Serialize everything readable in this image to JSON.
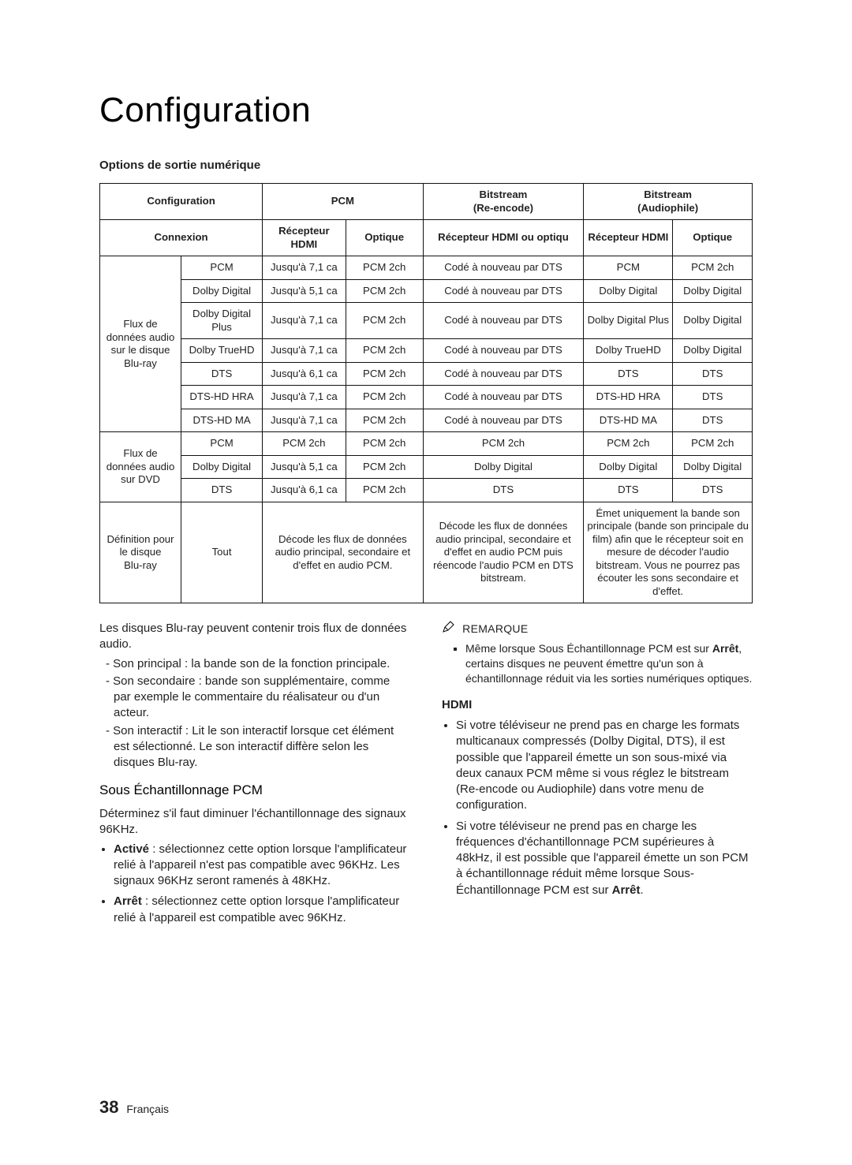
{
  "title": "Configuration",
  "subtitle": "Options de sortie numérique",
  "table_colwidths": [
    "82",
    "82",
    "84",
    "78",
    "162",
    "90",
    "80"
  ],
  "header_row1": {
    "config": "Configuration",
    "pcm": "PCM",
    "bitstream_re": "Bitstream\n(Re-encode)",
    "bitstream_au": "Bitstream\n(Audiophile)"
  },
  "header_row2": {
    "connexion": "Connexion",
    "pcm_hdmi": "Récepteur HDMI",
    "pcm_opt": "Optique",
    "re_hdmi_opt": "Récepteur HDMI ou optiqu",
    "au_hdmi": "Récepteur HDMI",
    "au_opt": "Optique"
  },
  "group1_label": "Flux de données audio sur le disque Blu-ray",
  "group1_rows": [
    [
      "PCM",
      "Jusqu'à 7,1 ca",
      "PCM 2ch",
      "Codé à nouveau par DTS",
      "PCM",
      "PCM 2ch"
    ],
    [
      "Dolby Digital",
      "Jusqu'à 5,1 ca",
      "PCM 2ch",
      "Codé à nouveau par DTS",
      "Dolby Digital",
      "Dolby Digital"
    ],
    [
      "Dolby Digital Plus",
      "Jusqu'à 7,1 ca",
      "PCM 2ch",
      "Codé à nouveau par DTS",
      "Dolby Digital Plus",
      "Dolby Digital"
    ],
    [
      "Dolby TrueHD",
      "Jusqu'à 7,1 ca",
      "PCM 2ch",
      "Codé à nouveau par DTS",
      "Dolby TrueHD",
      "Dolby Digital"
    ],
    [
      "DTS",
      "Jusqu'à 6,1 ca",
      "PCM 2ch",
      "Codé à nouveau par DTS",
      "DTS",
      "DTS"
    ],
    [
      "DTS-HD HRA",
      "Jusqu'à 7,1 ca",
      "PCM 2ch",
      "Codé à nouveau par DTS",
      "DTS-HD HRA",
      "DTS"
    ],
    [
      "DTS-HD MA",
      "Jusqu'à 7,1 ca",
      "PCM 2ch",
      "Codé à nouveau par DTS",
      "DTS-HD MA",
      "DTS"
    ]
  ],
  "group2_label": "Flux de données audio sur DVD",
  "group2_rows": [
    [
      "PCM",
      "PCM 2ch",
      "PCM 2ch",
      "PCM 2ch",
      "PCM 2ch",
      "PCM 2ch"
    ],
    [
      "Dolby Digital",
      "Jusqu'à 5,1 ca",
      "PCM 2ch",
      "Dolby Digital",
      "Dolby Digital",
      "Dolby Digital"
    ],
    [
      "DTS",
      "Jusqu'à 6,1 ca",
      "PCM 2ch",
      "DTS",
      "DTS",
      "DTS"
    ]
  ],
  "def_row": {
    "c0": "Définition pour le disque\nBlu-ray",
    "c1": "Tout",
    "c2": "Décode les flux de données audio principal, secondaire et d'effet en audio PCM.",
    "c3": "Décode les flux de données audio principal, secondaire et d'effet en audio PCM puis réencode l'audio PCM en DTS bitstream.",
    "c4": "Émet uniquement la bande son principale (bande son principale du film) afin que le récepteur soit en mesure de décoder l'audio bitstream. Vous ne pourrez pas écouter les sons secondaire et d'effet."
  },
  "left": {
    "intro": "Les disques Blu-ray peuvent contenir trois flux de données audio.",
    "dashes": [
      "Son principal : la bande son de la fonction principale.",
      "Son secondaire : bande son supplémentaire, comme par exemple le commentaire du réalisateur ou d'un acteur.",
      "Son interactif : Lit le son interactif lorsque cet élément est sélectionné. Le son interactif diffère selon les disques Blu-ray."
    ],
    "h3": "Sous Échantillonnage PCM",
    "p1": "Déterminez s'il faut diminuer l'échantillonnage des signaux 96KHz.",
    "b_active_label": "Activé",
    "b_active_text": " : sélectionnez cette option lorsque l'amplificateur relié à l'appareil n'est pas compatible avec 96KHz. Les signaux 96KHz seront ramenés à 48KHz.",
    "b_off_label": "Arrêt",
    "b_off_text": " : sélectionnez cette option lorsque l'amplificateur relié à l'appareil est compatible avec 96KHz."
  },
  "right": {
    "note_label": "REMARQUE",
    "note_text_pre": "Même lorsque Sous Échantillonnage PCM est sur ",
    "note_bold": "Arrêt",
    "note_text_post": ", certains disques ne peuvent émettre qu'un son à échantillonnage réduit via les sorties numériques optiques.",
    "hdmi_label": "HDMI",
    "hdmi_b1": "Si votre téléviseur ne prend pas en charge les formats multicanaux compressés (Dolby Digital, DTS), il est possible que l'appareil émette un son sous-mixé via deux canaux PCM même si vous réglez le bitstream (Re-encode ou Audiophile) dans votre menu de configuration.",
    "hdmi_b2_pre": "Si votre téléviseur ne prend pas en charge les fréquences d'échantillonnage PCM supérieures à 48kHz, il est possible que l'appareil émette un son PCM à échantillonnage réduit même lorsque Sous-Échantillonnage PCM est sur ",
    "hdmi_b2_bold": "Arrêt",
    "hdmi_b2_post": "."
  },
  "footer": {
    "page": "38",
    "lang": "Français"
  },
  "colors": {
    "text": "#222222",
    "border": "#111111",
    "bg": "#ffffff"
  },
  "fonts": {
    "title_size": 44,
    "body_size": 15,
    "table_size": 13.2
  }
}
